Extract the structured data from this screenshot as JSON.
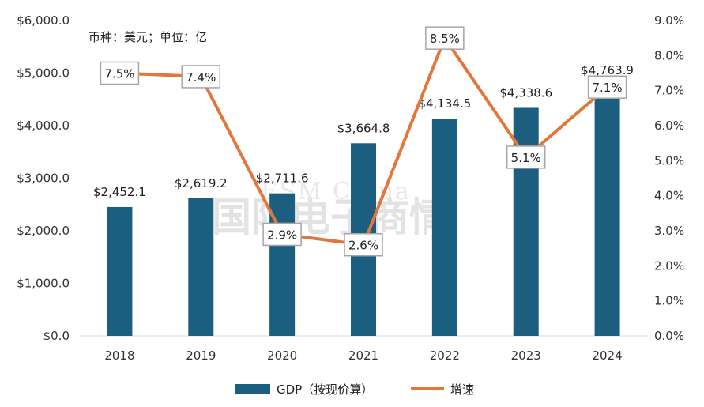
{
  "watermark": {
    "line1": "ESM China",
    "line2": "国际电子商情"
  },
  "note": "币种：美元；单位：亿",
  "colors": {
    "bar": "#1b5e80",
    "line": "#e2773b",
    "label_border": "#a6a6a6"
  },
  "chart_data": {
    "type": "bar",
    "categories": [
      "2018",
      "2019",
      "2020",
      "2021",
      "2022",
      "2023",
      "2024"
    ],
    "series": [
      {
        "name": "GDP（按现价算）",
        "type": "bar",
        "axis": "left",
        "values": [
          2452.1,
          2619.2,
          2711.6,
          3664.8,
          4134.5,
          4338.6,
          4763.9
        ],
        "labels": [
          "$2,452.1",
          "$2,619.2",
          "$2,711.6",
          "$3,664.8",
          "$4,134.5",
          "$4,338.6",
          "$4,763.9"
        ]
      },
      {
        "name": "增速",
        "type": "line",
        "axis": "right",
        "values": [
          7.5,
          7.4,
          2.9,
          2.6,
          8.5,
          5.1,
          7.1
        ],
        "labels": [
          "7.5%",
          "7.4%",
          "2.9%",
          "2.6%",
          "8.5%",
          "5.1%",
          "7.1%"
        ]
      }
    ],
    "y_left": {
      "ylim": [
        0,
        6000
      ],
      "ticks": [
        0,
        1000,
        2000,
        3000,
        4000,
        5000,
        6000
      ],
      "tick_labels": [
        "$0.0",
        "$1,000.0",
        "$2,000.0",
        "$3,000.0",
        "$4,000.0",
        "$5,000.0",
        "$6,000.0"
      ]
    },
    "y_right": {
      "ylim": [
        0,
        9
      ],
      "ticks": [
        0,
        1,
        2,
        3,
        4,
        5,
        6,
        7,
        8,
        9
      ],
      "tick_labels": [
        "0.0%",
        "1.0%",
        "2.0%",
        "3.0%",
        "4.0%",
        "5.0%",
        "6.0%",
        "7.0%",
        "8.0%",
        "9.0%"
      ]
    },
    "grid": false,
    "legend_position": "bottom-center"
  }
}
